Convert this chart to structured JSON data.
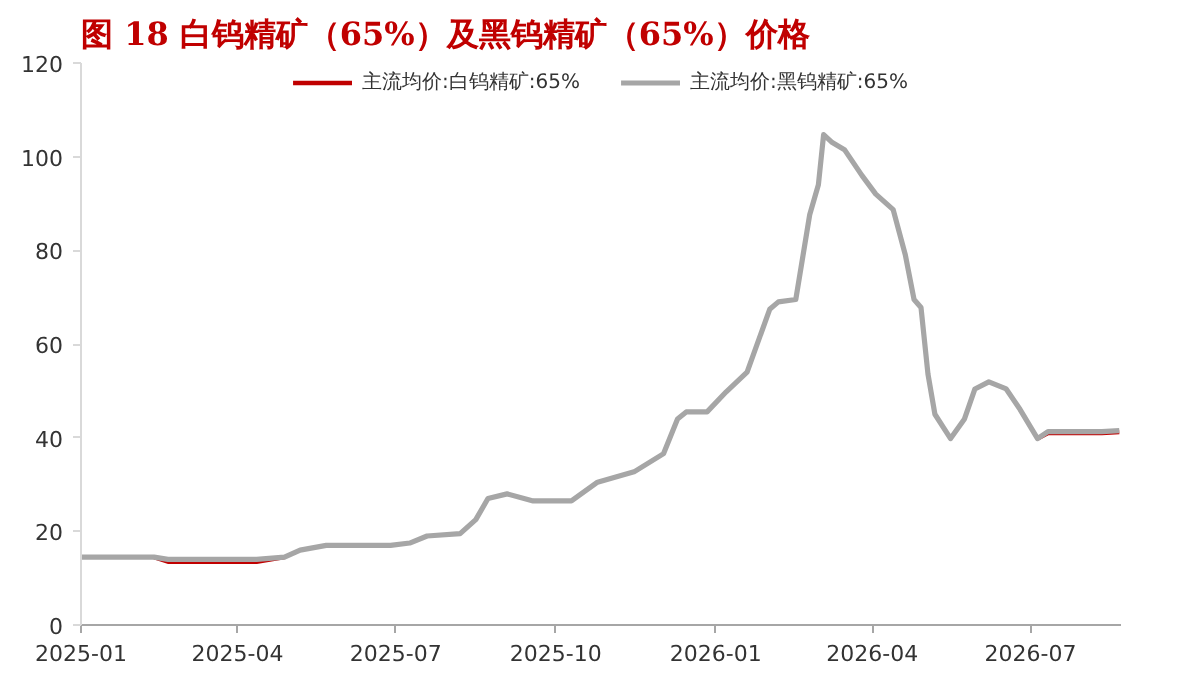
{
  "chart_data": {
    "type": "line",
    "title": "图 18 白钨精矿（65%）及黑钨精矿（65%）价格",
    "x": [
      "2025-01-01",
      "2025-02-12",
      "2025-02-20",
      "2025-04-12",
      "2025-04-28",
      "2025-05-07",
      "2025-05-22",
      "2025-06-28",
      "2025-07-09",
      "2025-07-19",
      "2025-08-07",
      "2025-08-16",
      "2025-08-23",
      "2025-09-03",
      "2025-09-18",
      "2025-10-10",
      "2025-10-25",
      "2025-11-15",
      "2025-12-02",
      "2025-12-10",
      "2025-12-15",
      "2025-12-27",
      "2026-01-07",
      "2026-01-19",
      "2026-02-01",
      "2026-02-06",
      "2026-02-16",
      "2026-02-24",
      "2026-03-01",
      "2026-03-04",
      "2026-03-09",
      "2026-03-16",
      "2026-03-26",
      "2026-04-03",
      "2026-04-13",
      "2026-04-20",
      "2026-04-25",
      "2026-04-29",
      "2026-05-03",
      "2026-05-07",
      "2026-05-16",
      "2026-05-24",
      "2026-05-30",
      "2026-06-07",
      "2026-06-17",
      "2026-06-25",
      "2026-07-05",
      "2026-07-11",
      "2026-08-11",
      "2026-08-21"
    ],
    "series": [
      {
        "name": "主流均价:白钨精矿:65%",
        "color": "#c00000",
        "values": [
          null,
          14.5,
          13.5,
          13.5,
          14.5,
          null,
          null,
          null,
          null,
          null,
          null,
          null,
          null,
          null,
          null,
          null,
          null,
          null,
          null,
          null,
          null,
          null,
          null,
          null,
          null,
          null,
          null,
          null,
          null,
          null,
          null,
          null,
          null,
          null,
          null,
          null,
          null,
          null,
          null,
          null,
          null,
          null,
          null,
          null,
          null,
          null,
          39.8,
          41,
          41,
          41.2
        ]
      },
      {
        "name": "主流均价:黑钨精矿:65%",
        "color": "#a6a6a6",
        "values": [
          14.5,
          14.5,
          14,
          14,
          14.5,
          16,
          17,
          17,
          17.5,
          19,
          19.5,
          22.5,
          27,
          28,
          26.5,
          26.5,
          30.5,
          32.7,
          36.6,
          44,
          45.5,
          45.5,
          49.8,
          54,
          67.4,
          69,
          69.5,
          87.6,
          94,
          104.7,
          103,
          101.5,
          96,
          92,
          88.7,
          79,
          69.5,
          67.8,
          53.6,
          45,
          39.8,
          44,
          50.4,
          51.9,
          50.4,
          46,
          39.8,
          41.3,
          41.3,
          41.5
        ]
      }
    ],
    "xlim": [
      "2025-01-01",
      "2026-08-22"
    ],
    "xticks": [
      {
        "value": "2025-01-01",
        "label": "2025-01"
      },
      {
        "value": "2025-04-01",
        "label": "2025-04"
      },
      {
        "value": "2025-07-01",
        "label": "2025-07"
      },
      {
        "value": "2025-10-01",
        "label": "2025-10"
      },
      {
        "value": "2026-01-01",
        "label": "2026-01"
      },
      {
        "value": "2026-04-01",
        "label": "2026-04"
      },
      {
        "value": "2026-07-01",
        "label": "2026-07"
      }
    ],
    "ylim": [
      0,
      120
    ],
    "yticks": [
      0,
      20,
      40,
      60,
      80,
      100,
      120
    ],
    "legend": "top",
    "grid": false,
    "marker": "none",
    "line_style": "solid"
  }
}
